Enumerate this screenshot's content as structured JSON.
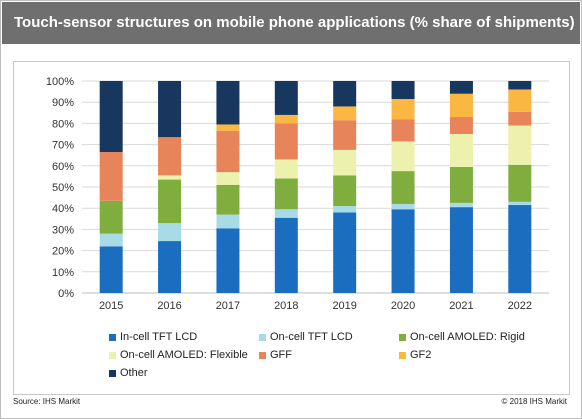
{
  "title": "Touch-sensor structures on mobile phone applications (% share of shipments)",
  "footer": {
    "source": "Source: IHS Markit",
    "copyright": "© 2018 IHS Markit"
  },
  "chart_data": {
    "type": "bar",
    "stacked": true,
    "categories": [
      "2015",
      "2016",
      "2017",
      "2018",
      "2019",
      "2020",
      "2021",
      "2022"
    ],
    "ylim": [
      0,
      100
    ],
    "yticks": [
      "0%",
      "10%",
      "20%",
      "30%",
      "40%",
      "50%",
      "60%",
      "70%",
      "80%",
      "90%",
      "100%"
    ],
    "grid": true,
    "legend_position": "bottom",
    "series": [
      {
        "name": "In-cell TFT LCD",
        "color": "#1b6ebf",
        "values": [
          22,
          24.5,
          30.5,
          35.5,
          38,
          39.5,
          40.5,
          41.5
        ]
      },
      {
        "name": "On-cell TFT LCD",
        "color": "#a8dbe6",
        "values": [
          6,
          8.5,
          6.5,
          4,
          3,
          2.5,
          2,
          1.5
        ]
      },
      {
        "name": "On-cell AMOLED: Rigid",
        "color": "#7fae3f",
        "values": [
          15.5,
          20.5,
          14,
          14.5,
          14.5,
          15.5,
          17,
          17.5
        ]
      },
      {
        "name": "On-cell AMOLED: Flexible",
        "color": "#ecf1ad",
        "values": [
          0,
          2,
          6,
          9,
          12,
          14,
          15.5,
          18.5
        ]
      },
      {
        "name": "GFF",
        "color": "#e7845a",
        "values": [
          23,
          18,
          19.5,
          17,
          14,
          10.5,
          8,
          6.5
        ]
      },
      {
        "name": "GF2",
        "color": "#fab843",
        "values": [
          0,
          0,
          3,
          4,
          6.5,
          9.5,
          11,
          10.5
        ]
      },
      {
        "name": "Other",
        "color": "#17375e",
        "values": [
          33.5,
          26.5,
          20.5,
          16,
          12,
          8.5,
          6,
          4
        ]
      }
    ]
  }
}
